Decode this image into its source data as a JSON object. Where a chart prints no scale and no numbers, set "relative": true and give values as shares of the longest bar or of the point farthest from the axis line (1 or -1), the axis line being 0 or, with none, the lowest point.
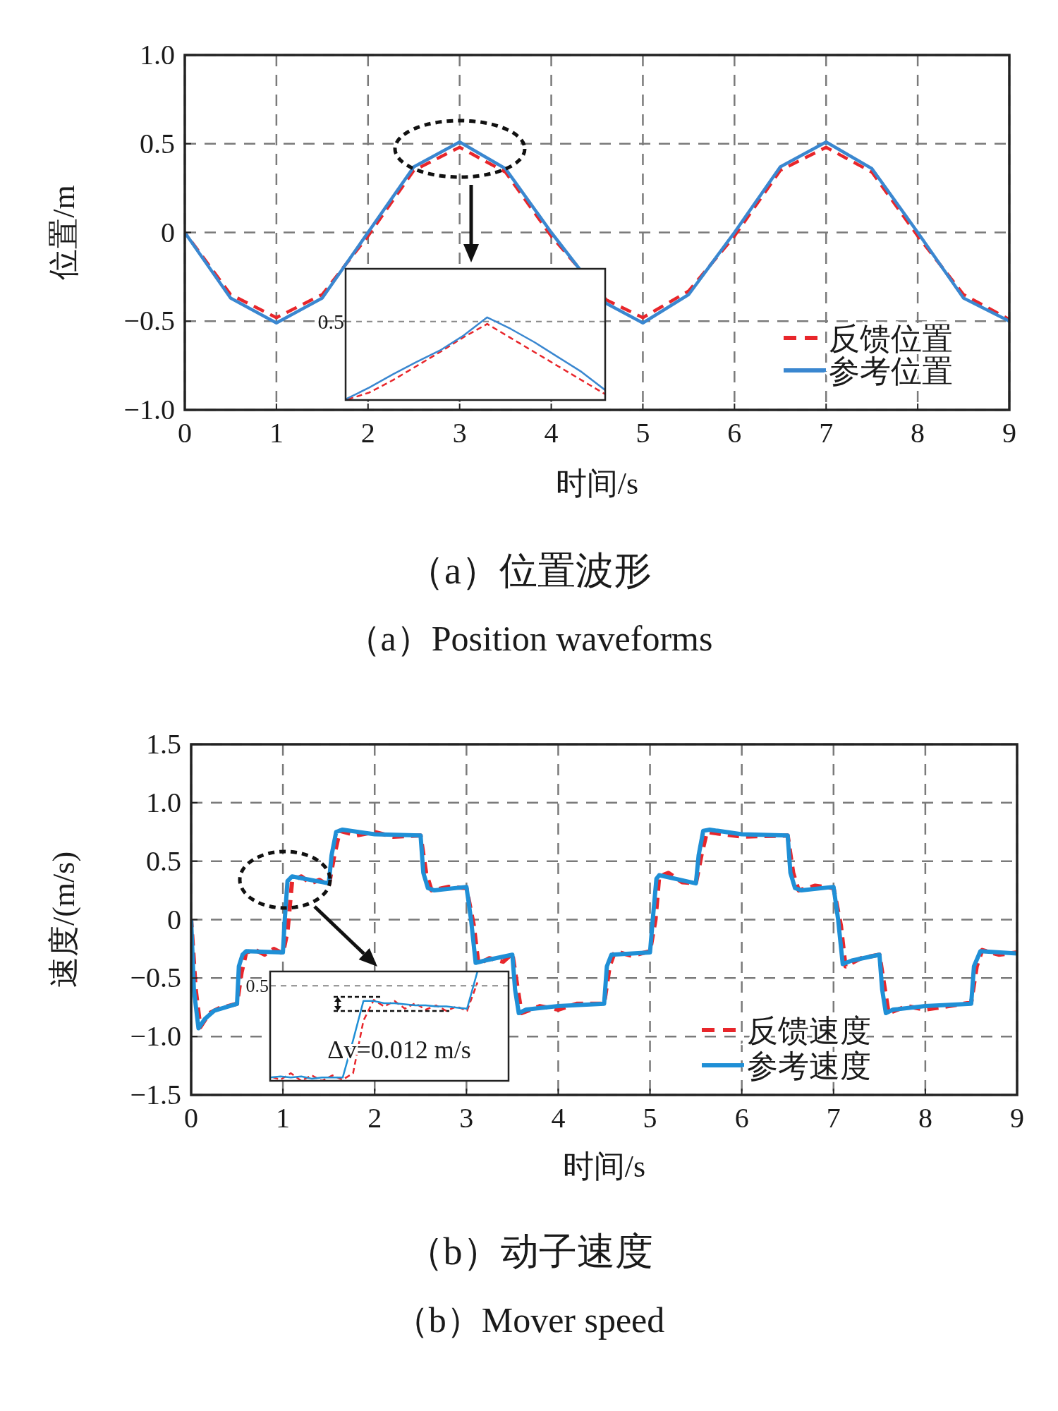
{
  "chart_data": [
    {
      "type": "line",
      "xlabel": "时间/s",
      "ylabel": "位置/m",
      "xlim": [
        0,
        9
      ],
      "ylim": [
        -1,
        1
      ],
      "xticks": [
        0,
        1,
        2,
        3,
        4,
        5,
        6,
        7,
        8,
        9
      ],
      "yticks": [
        {
          "value": -1,
          "label": "−1.0"
        },
        {
          "value": -0.5,
          "label": "−0.5"
        },
        0,
        0.5,
        {
          "value": 1,
          "label": "1.0"
        }
      ],
      "grid": true,
      "legend": "bottom right",
      "series": [
        {
          "name": "反馈位置",
          "color": "#e8262b",
          "line_style": "dashed",
          "x": [
            0,
            0.5,
            1,
            1.5,
            2,
            2.5,
            3,
            3.5,
            4,
            4.6,
            5,
            5.5,
            6,
            6.5,
            7,
            7.5,
            8,
            8.5,
            9
          ],
          "values": [
            0,
            -0.35,
            -0.48,
            -0.35,
            -0.02,
            0.35,
            0.48,
            0.34,
            -0.02,
            -0.38,
            -0.48,
            -0.33,
            -0.02,
            0.35,
            0.48,
            0.34,
            -0.02,
            -0.35,
            -0.49
          ]
        },
        {
          "name": "参考位置",
          "color": "#3a87d0",
          "line_style": "solid",
          "x": [
            0,
            0.5,
            1,
            1.5,
            2,
            2.5,
            3,
            3.5,
            4,
            4.6,
            5,
            5.5,
            6,
            6.5,
            7,
            7.5,
            8,
            8.5,
            9
          ],
          "values": [
            0,
            -0.37,
            -0.51,
            -0.37,
            0,
            0.37,
            0.51,
            0.36,
            0,
            -0.4,
            -0.51,
            -0.35,
            0,
            0.37,
            0.51,
            0.36,
            0,
            -0.37,
            -0.5
          ]
        }
      ],
      "annotations": [
        "（a）位置波形",
        "（a）Position waveforms"
      ]
    },
    {
      "type": "line",
      "relative": true,
      "categories": [
        null,
        null,
        null,
        null,
        null,
        null,
        null,
        null,
        null,
        null,
        null,
        null
      ],
      "series": [
        {
          "color": "#e8262b",
          "line_style": "dashed",
          "values": [
            0,
            0.09,
            0.24,
            0.41,
            0.58,
            0.76,
            0.92,
            0.75,
            0.58,
            0.41,
            0.24,
            0.07
          ]
        },
        {
          "color": "#3a87d0",
          "line_style": "solid",
          "values": [
            0.01,
            0.15,
            0.31,
            0.46,
            0.6,
            0.78,
            1,
            0.86,
            0.7,
            0.52,
            0.34,
            0.12
          ]
        }
      ],
      "ref_lines": [
        {
          "axis": "y",
          "value": 0.95
        }
      ],
      "annotations": [
        "0.5"
      ]
    },
    {
      "type": "line",
      "xlabel": "时间/s",
      "ylabel": "速度/(m/s)",
      "xlim": [
        0,
        9
      ],
      "ylim": [
        -1.5,
        1.5
      ],
      "xticks": [
        0,
        1,
        2,
        3,
        4,
        5,
        6,
        7,
        8,
        9
      ],
      "yticks": [
        {
          "value": -1.5,
          "label": "−1.5"
        },
        {
          "value": -1,
          "label": "−1.0"
        },
        {
          "value": -0.5,
          "label": "−0.5"
        },
        0,
        0.5,
        {
          "value": 1,
          "label": "1.0"
        },
        1.5
      ],
      "grid": true,
      "legend": "bottom right",
      "series": [
        {
          "name": "反馈速度",
          "color": "#e8262b",
          "line_style": "dashed",
          "x": [
            0,
            0.05,
            0.1,
            0.2,
            0.3,
            0.4,
            0.5,
            0.55,
            0.6,
            0.7,
            0.8,
            0.9,
            1,
            1.05,
            1.1,
            1.2,
            1.3,
            1.4,
            1.5,
            1.56,
            1.62,
            1.8,
            2,
            2.2,
            2.5,
            2.56,
            2.62,
            2.8,
            3,
            3.08,
            3.13,
            3.25,
            3.4,
            3.5,
            3.56,
            3.6,
            3.8,
            4,
            4.2,
            4.5,
            4.56,
            4.62,
            4.8,
            5,
            5.06,
            5.1,
            5.2,
            5.35,
            5.5,
            5.56,
            5.62,
            5.8,
            6,
            6.5,
            6.56,
            6.62,
            6.8,
            7,
            7.08,
            7.13,
            7.3,
            7.5,
            7.56,
            7.6,
            7.8,
            8,
            8.5,
            8.56,
            8.62,
            8.8,
            9
          ],
          "values": [
            0,
            -0.6,
            -0.92,
            -0.8,
            -0.76,
            -0.74,
            -0.72,
            -0.45,
            -0.28,
            -0.26,
            -0.3,
            -0.25,
            -0.29,
            -0.1,
            0.33,
            0.37,
            0.31,
            0.34,
            0.29,
            0.55,
            0.76,
            0.72,
            0.75,
            0.71,
            0.72,
            0.4,
            0.25,
            0.28,
            0.27,
            -0.05,
            -0.38,
            -0.33,
            -0.36,
            -0.29,
            -0.6,
            -0.8,
            -0.74,
            -0.77,
            -0.72,
            -0.72,
            -0.4,
            -0.27,
            -0.31,
            -0.27,
            0,
            0.37,
            0.4,
            0.32,
            0.31,
            0.55,
            0.75,
            0.73,
            0.71,
            0.72,
            0.4,
            0.25,
            0.29,
            0.27,
            -0.05,
            -0.4,
            -0.33,
            -0.3,
            -0.6,
            -0.8,
            -0.74,
            -0.77,
            -0.71,
            -0.4,
            -0.26,
            -0.3,
            -0.28
          ]
        },
        {
          "name": "参考速度",
          "color": "#1f8fd6",
          "line_style": "solid",
          "x": [
            0,
            0.03,
            0.08,
            0.15,
            0.25,
            0.5,
            0.52,
            0.56,
            0.6,
            1,
            1.02,
            1.05,
            1.1,
            1.5,
            1.53,
            1.58,
            1.65,
            2,
            2.5,
            2.53,
            2.58,
            2.65,
            3,
            3.05,
            3.1,
            3.2,
            3.5,
            3.53,
            3.57,
            3.65,
            4,
            4.5,
            4.53,
            4.58,
            5,
            5.03,
            5.07,
            5.1,
            5.5,
            5.53,
            5.58,
            5.65,
            6,
            6.5,
            6.53,
            6.58,
            6.65,
            7,
            7.05,
            7.1,
            7.2,
            7.5,
            7.53,
            7.57,
            7.65,
            8,
            8.5,
            8.53,
            8.6,
            9
          ],
          "values": [
            0,
            -0.6,
            -0.93,
            -0.85,
            -0.78,
            -0.72,
            -0.4,
            -0.3,
            -0.27,
            -0.28,
            0,
            0.33,
            0.37,
            0.31,
            0.55,
            0.75,
            0.77,
            0.73,
            0.72,
            0.4,
            0.27,
            0.25,
            0.28,
            0,
            -0.37,
            -0.35,
            -0.3,
            -0.6,
            -0.8,
            -0.77,
            -0.74,
            -0.72,
            -0.4,
            -0.3,
            -0.28,
            0,
            0.35,
            0.38,
            0.31,
            0.55,
            0.76,
            0.77,
            0.73,
            0.72,
            0.4,
            0.27,
            0.25,
            0.28,
            0,
            -0.38,
            -0.35,
            -0.3,
            -0.6,
            -0.8,
            -0.77,
            -0.74,
            -0.72,
            -0.4,
            -0.27,
            -0.29
          ]
        }
      ],
      "annotations": [
        "（b）动子速度",
        "（b）Mover speed"
      ]
    },
    {
      "type": "line",
      "relative": true,
      "categories": [
        null,
        null,
        null,
        null,
        null,
        null,
        null,
        null,
        null,
        null,
        null,
        null,
        null,
        null,
        null,
        null,
        null,
        null,
        null,
        null,
        null,
        null,
        null,
        null
      ],
      "series": [
        {
          "color": "#e8262b",
          "line_style": "dashed",
          "values": [
            0.04,
            0.01,
            0.07,
            0,
            0.05,
            0,
            0.05,
            0.01,
            0.07,
            0.55,
            0.74,
            0.68,
            0.73,
            0.66,
            0.71,
            0.65,
            0.69,
            0.64,
            0.68,
            0.64,
            0.9,
            null,
            null,
            null
          ]
        },
        {
          "color": "#1f8fd6",
          "line_style": "solid",
          "values": [
            0.03,
            0.04,
            0.03,
            0.04,
            0.02,
            0.03,
            0.03,
            0.03,
            0.37,
            0.73,
            0.73,
            0.71,
            0.71,
            0.7,
            0.69,
            0.69,
            0.68,
            0.68,
            0.67,
            0.66,
            1,
            null,
            null,
            null
          ]
        }
      ],
      "ref_lines": [
        {
          "axis": "y",
          "value": 0.87
        }
      ],
      "annotations": [
        "0.5",
        "Δv=0.012 m/s"
      ]
    }
  ]
}
